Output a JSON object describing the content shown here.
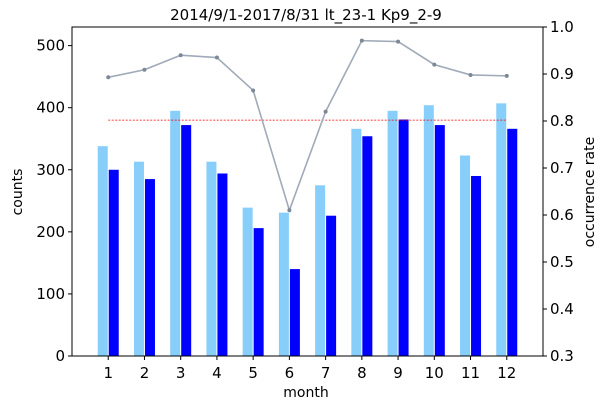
{
  "chart_data": {
    "type": "bar",
    "title": "2014/9/1-2017/8/31  lt_23-1  Kp9_2-9",
    "xlabel": "month",
    "ylabel": "counts",
    "y2label": "occurrence rate",
    "categories": [
      "1",
      "2",
      "3",
      "4",
      "5",
      "6",
      "7",
      "8",
      "9",
      "10",
      "11",
      "12"
    ],
    "ylim": [
      0,
      530
    ],
    "yticks": [
      0,
      100,
      200,
      300,
      400,
      500
    ],
    "y2lim": [
      0.3,
      1.0
    ],
    "y2ticks": [
      "0.3",
      "0.4",
      "0.5",
      "0.6",
      "0.7",
      "0.8",
      "0.9",
      "1.0"
    ],
    "grid": false,
    "series": [
      {
        "axis": "left",
        "kind": "bar",
        "color": "#87cefa",
        "values": [
          338,
          313,
          395,
          313,
          239,
          231,
          275,
          366,
          395,
          404,
          323,
          407
        ]
      },
      {
        "axis": "left",
        "kind": "bar",
        "color": "#0000ff",
        "values": [
          300,
          285,
          372,
          294,
          206,
          140,
          226,
          354,
          381,
          372,
          290,
          366
        ]
      },
      {
        "axis": "right",
        "kind": "line",
        "color": "#a0aab8",
        "values": [
          0.893,
          0.909,
          0.94,
          0.935,
          0.865,
          0.61,
          0.82,
          0.971,
          0.969,
          0.92,
          0.898,
          0.896
        ]
      }
    ],
    "reference_line": {
      "axis": "left",
      "value": 380,
      "color": "#ff0000",
      "style": "dashed"
    }
  }
}
